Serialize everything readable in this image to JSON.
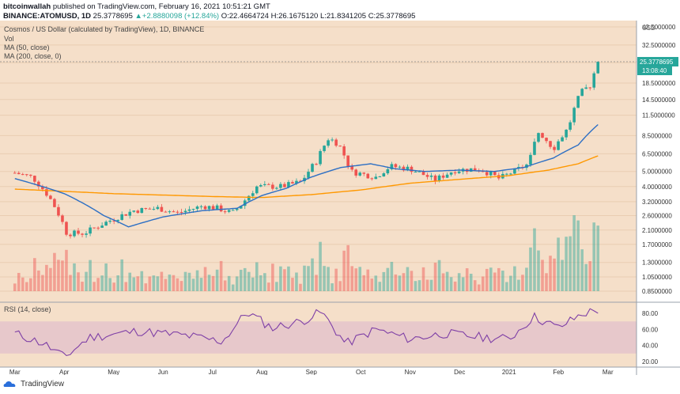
{
  "header": {
    "author": "bitcoinwallah",
    "published": "published on TradingView.com, February 16, 2021 10:51:21 GMT",
    "symbol": "BINANCE:ATOMUSD, 1D",
    "last": "25.3778695",
    "change": "+2.8880098 (+12.84%)",
    "ohlc": "O:22.4664724 H:26.1675120 L:21.8341205 C:25.3778695"
  },
  "legend": {
    "title": "Cosmos / US Dollar (calculated by TradingView), 1D, BINANCE",
    "vol": "Vol",
    "ma50": "MA (50, close)",
    "ma200": "MA (200, close, 0)"
  },
  "price_tag": {
    "value": "25.3778695",
    "countdown": "13:08:40"
  },
  "currency": "USD",
  "rsi_label": "RSI (14, close)",
  "footer": {
    "brand": "TradingView"
  },
  "colors": {
    "bg": "#f5dfc9",
    "up": "#26a69a",
    "down": "#ef5350",
    "ma50": "#2d6fc4",
    "ma200": "#ff9800",
    "rsi": "#7e3fa6",
    "rsi_band": "#e1c0cb"
  },
  "chart_data": {
    "type": "candlestick",
    "scale": "log",
    "title": "Cosmos / US Dollar (calculated by TradingView), 1D, BINANCE",
    "price_ticks": [
      "42.5000000",
      "32.5000000",
      "25.0000000",
      "18.5000000",
      "14.5000000",
      "11.5000000",
      "8.5000000",
      "6.5000000",
      "5.0000000",
      "4.0000000",
      "3.2000000",
      "2.6000000",
      "2.1000000",
      "1.7000000",
      "1.3000000",
      "1.0500000",
      "0.8500000"
    ],
    "x_labels": [
      "Mar",
      "Apr",
      "May",
      "Jun",
      "Jul",
      "Aug",
      "Sep",
      "Oct",
      "Nov",
      "Dec",
      "2021",
      "Feb",
      "Mar"
    ],
    "rsi_ticks": [
      "80.00",
      "60.00",
      "40.00",
      "20.00"
    ],
    "price_keypoints": [
      {
        "month": 0.0,
        "price": 4.9
      },
      {
        "month": 0.35,
        "price": 4.6
      },
      {
        "month": 0.7,
        "price": 3.4
      },
      {
        "month": 1.05,
        "price": 2.0
      },
      {
        "month": 1.4,
        "price": 2.0
      },
      {
        "month": 1.9,
        "price": 2.4
      },
      {
        "month": 2.4,
        "price": 2.8
      },
      {
        "month": 2.9,
        "price": 2.9
      },
      {
        "month": 3.3,
        "price": 2.7
      },
      {
        "month": 3.8,
        "price": 3.0
      },
      {
        "month": 4.1,
        "price": 2.9
      },
      {
        "month": 4.4,
        "price": 2.7
      },
      {
        "month": 4.6,
        "price": 3.1
      },
      {
        "month": 4.9,
        "price": 4.0
      },
      {
        "month": 5.4,
        "price": 4.0
      },
      {
        "month": 5.8,
        "price": 4.3
      },
      {
        "month": 6.1,
        "price": 5.8
      },
      {
        "month": 6.35,
        "price": 8.2
      },
      {
        "month": 6.55,
        "price": 7.5
      },
      {
        "month": 6.8,
        "price": 5.0
      },
      {
        "month": 7.3,
        "price": 4.6
      },
      {
        "month": 7.6,
        "price": 5.4
      },
      {
        "month": 8.0,
        "price": 5.2
      },
      {
        "month": 8.5,
        "price": 4.4
      },
      {
        "month": 8.9,
        "price": 5.1
      },
      {
        "month": 9.4,
        "price": 5.2
      },
      {
        "month": 9.8,
        "price": 4.5
      },
      {
        "month": 10.1,
        "price": 5.0
      },
      {
        "month": 10.4,
        "price": 5.6
      },
      {
        "month": 10.6,
        "price": 9.0
      },
      {
        "month": 10.9,
        "price": 7.0
      },
      {
        "month": 11.2,
        "price": 9.5
      },
      {
        "month": 11.45,
        "price": 16.0
      },
      {
        "month": 11.65,
        "price": 18.0
      },
      {
        "month": 11.8,
        "price": 25.38
      }
    ],
    "ma50_keypoints": [
      {
        "month": 0.0,
        "price": 4.5
      },
      {
        "month": 1.0,
        "price": 3.6
      },
      {
        "month": 1.8,
        "price": 2.6
      },
      {
        "month": 2.3,
        "price": 2.2
      },
      {
        "month": 3.0,
        "price": 2.55
      },
      {
        "month": 3.8,
        "price": 2.8
      },
      {
        "month": 4.5,
        "price": 2.9
      },
      {
        "month": 5.0,
        "price": 3.5
      },
      {
        "month": 5.5,
        "price": 3.9
      },
      {
        "month": 6.0,
        "price": 4.6
      },
      {
        "month": 6.6,
        "price": 5.3
      },
      {
        "month": 7.2,
        "price": 5.6
      },
      {
        "month": 7.7,
        "price": 5.2
      },
      {
        "month": 8.3,
        "price": 5.0
      },
      {
        "month": 9.0,
        "price": 5.1
      },
      {
        "month": 9.7,
        "price": 5.0
      },
      {
        "month": 10.3,
        "price": 5.3
      },
      {
        "month": 10.9,
        "price": 6.1
      },
      {
        "month": 11.4,
        "price": 7.4
      },
      {
        "month": 11.8,
        "price": 10.0
      }
    ],
    "ma200_keypoints": [
      {
        "month": 0.0,
        "price": 3.85
      },
      {
        "month": 2.0,
        "price": 3.6
      },
      {
        "month": 4.0,
        "price": 3.45
      },
      {
        "month": 5.0,
        "price": 3.4
      },
      {
        "month": 6.0,
        "price": 3.55
      },
      {
        "month": 7.0,
        "price": 3.8
      },
      {
        "month": 8.0,
        "price": 4.2
      },
      {
        "month": 9.0,
        "price": 4.45
      },
      {
        "month": 10.0,
        "price": 4.7
      },
      {
        "month": 10.8,
        "price": 5.1
      },
      {
        "month": 11.4,
        "price": 5.6
      },
      {
        "month": 11.8,
        "price": 6.3
      }
    ],
    "rsi_keypoints": [
      {
        "month": 0.0,
        "rsi": 55
      },
      {
        "month": 0.6,
        "rsi": 42
      },
      {
        "month": 1.0,
        "rsi": 25
      },
      {
        "month": 1.5,
        "rsi": 50
      },
      {
        "month": 2.5,
        "rsi": 58
      },
      {
        "month": 3.5,
        "rsi": 52
      },
      {
        "month": 4.2,
        "rsi": 45
      },
      {
        "month": 4.7,
        "rsi": 82
      },
      {
        "month": 5.2,
        "rsi": 62
      },
      {
        "month": 5.8,
        "rsi": 70
      },
      {
        "month": 6.2,
        "rsi": 82
      },
      {
        "month": 6.7,
        "rsi": 42
      },
      {
        "month": 7.3,
        "rsi": 60
      },
      {
        "month": 8.0,
        "rsi": 48
      },
      {
        "month": 8.7,
        "rsi": 55
      },
      {
        "month": 9.5,
        "rsi": 50
      },
      {
        "month": 10.0,
        "rsi": 48
      },
      {
        "month": 10.5,
        "rsi": 76
      },
      {
        "month": 11.0,
        "rsi": 62
      },
      {
        "month": 11.5,
        "rsi": 80
      },
      {
        "month": 11.8,
        "rsi": 84
      }
    ]
  }
}
